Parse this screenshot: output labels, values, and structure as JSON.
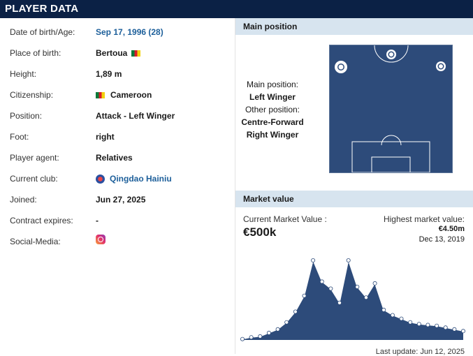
{
  "header": {
    "title": "PLAYER DATA"
  },
  "player_info": [
    {
      "label": "Date of birth/Age:",
      "value": "Sep 17, 1996 (28)",
      "link": true,
      "kind": "text"
    },
    {
      "label": "Place of birth:",
      "value": "Bertoua",
      "link": false,
      "kind": "flag-after"
    },
    {
      "label": "Height:",
      "value": "1,89 m",
      "link": false,
      "kind": "text"
    },
    {
      "label": "Citizenship:",
      "value": "Cameroon",
      "link": false,
      "kind": "flag-before"
    },
    {
      "label": "Position:",
      "value": "Attack - Left Winger",
      "link": false,
      "kind": "text"
    },
    {
      "label": "Foot:",
      "value": "right",
      "link": false,
      "kind": "text"
    },
    {
      "label": "Player agent:",
      "value": "Relatives",
      "link": false,
      "kind": "text"
    },
    {
      "label": "Current club:",
      "value": "Qingdao Hainiu",
      "link": true,
      "kind": "club"
    },
    {
      "label": "Joined:",
      "value": "Jun 27, 2025",
      "link": false,
      "kind": "text"
    },
    {
      "label": "Contract expires:",
      "value": "-",
      "link": false,
      "kind": "text"
    },
    {
      "label": "Social-Media:",
      "value": "",
      "link": false,
      "kind": "instagram"
    }
  ],
  "main_position": {
    "title": "Main position",
    "main_label": "Main position:",
    "main_value": "Left Winger",
    "other_label": "Other position:",
    "other_values": [
      "Centre-Forward",
      "Right Winger"
    ]
  },
  "market_value": {
    "title": "Market value",
    "current_label": "Current Market Value :",
    "current_value": "€500k",
    "highest_label": "Highest market value:",
    "highest_value": "€4.50m",
    "highest_date": "Dec 13, 2019",
    "last_update": "Last update: Jun 12, 2025"
  },
  "colors": {
    "header": "#0b2145",
    "panel_head": "#d7e4ef",
    "pitch": "#2d4b7a",
    "chart_fill": "#2d4b7a",
    "link": "#1d5f9a"
  },
  "chart_data": {
    "type": "area",
    "title": "",
    "xlabel": "",
    "ylabel": "",
    "unit": "€m",
    "ylim": [
      0,
      4.5
    ],
    "values": [
      0.05,
      0.15,
      0.2,
      0.4,
      0.6,
      1.0,
      1.6,
      2.5,
      4.5,
      3.3,
      2.9,
      2.1,
      4.5,
      3.0,
      2.4,
      3.2,
      1.7,
      1.4,
      1.2,
      1.0,
      0.9,
      0.85,
      0.8,
      0.7,
      0.6,
      0.5
    ]
  }
}
